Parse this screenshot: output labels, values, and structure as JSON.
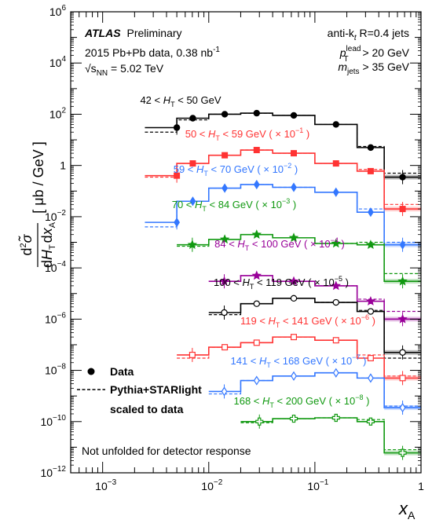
{
  "chart_data": {
    "type": "step",
    "title": "ATLAS Preliminary",
    "annotations": {
      "atlas_bold": "ATLAS",
      "atlas_rest": "Preliminary",
      "dataset": "2015 Pb+Pb data, 0.38 nb",
      "dataset_sup": "-1",
      "energy_pre": "√s",
      "energy_sub": "NN",
      "energy_post": " = 5.02 TeV",
      "jets_line": "anti-k",
      "jets_sub": "t",
      "jets_post": " R=0.4 jets",
      "cut1_p": "p",
      "cut1_sup": "lead",
      "cut1_sub": "T",
      "cut1_rest": " > 20 GeV",
      "cut2_m": "m",
      "cut2_sub": "jets",
      "cut2_rest": " > 35 GeV",
      "footer": "Not unfolded for detector response"
    },
    "xlabel": "x",
    "xlabel_sub": "A",
    "ylabel": "d²σ̃ / dH_T dx_A [ μb / GeV ]",
    "xscale": "log",
    "yscale": "log",
    "xlim": [
      0.0005,
      1
    ],
    "ylim": [
      1e-12,
      1000000.0
    ],
    "x_ticks": [
      {
        "value": 0.001,
        "label": "10",
        "exp": "−3"
      },
      {
        "value": 0.01,
        "label": "10",
        "exp": "−2"
      },
      {
        "value": 0.1,
        "label": "10",
        "exp": "−1"
      },
      {
        "value": 1,
        "label": "1",
        "exp": ""
      }
    ],
    "y_ticks": [
      {
        "value": 1e-12,
        "label": "10",
        "exp": "−12"
      },
      {
        "value": 1e-10,
        "label": "10",
        "exp": "−10"
      },
      {
        "value": 1e-08,
        "label": "10",
        "exp": "−8"
      },
      {
        "value": 1e-06,
        "label": "10",
        "exp": "−6"
      },
      {
        "value": 0.0001,
        "label": "10",
        "exp": "−4"
      },
      {
        "value": 0.01,
        "label": "10",
        "exp": "−2"
      },
      {
        "value": 1,
        "label": "1",
        "exp": ""
      },
      {
        "value": 100,
        "label": "10",
        "exp": "2"
      },
      {
        "value": 10000,
        "label": "10",
        "exp": "4"
      },
      {
        "value": 1000000,
        "label": "10",
        "exp": "6"
      }
    ],
    "legend": {
      "placement": "bottom-left",
      "entries": [
        {
          "marker": "filled-circle",
          "label": "Data"
        },
        {
          "marker": "dashed-line",
          "label": "Pythia+STARlight"
        },
        {
          "marker": "none",
          "label": "scaled to data"
        }
      ]
    },
    "series": [
      {
        "name": "42 < H_T < 50 GeV",
        "label_parts": [
          "42 < ",
          "H",
          "T",
          " < 50 GeV",
          ""
        ],
        "color": "#000000",
        "marker": "filled-circle",
        "edges": [
          0.0025,
          0.005,
          0.01,
          0.02,
          0.04,
          0.1,
          0.25,
          0.45,
          1
        ],
        "data": [
          30,
          70,
          100,
          110,
          90,
          40,
          5,
          0.35
        ],
        "mc": [
          20,
          60,
          100,
          110,
          90,
          40,
          5.5,
          0.5
        ],
        "first_x": 0.005
      },
      {
        "name": "50 < H_T < 59 GeV ( × 10^-1 )",
        "label_parts": [
          "50 < ",
          "H",
          "T",
          " < 59 GeV ( × 10",
          "−1",
          " )"
        ],
        "color": "#ff3333",
        "marker": "filled-square",
        "edges": [
          0.0025,
          0.005,
          0.01,
          0.02,
          0.04,
          0.1,
          0.25,
          0.45,
          1
        ],
        "data": [
          0.4,
          1.2,
          2.5,
          4,
          3,
          1.2,
          0.6,
          0.02
        ],
        "mc": [
          0.35,
          1.2,
          2.5,
          4,
          3,
          1.2,
          0.7,
          0.03
        ],
        "first_x": 0.005
      },
      {
        "name": "59 < H_T < 70 GeV ( × 10^-2 )",
        "label_parts": [
          "59 < ",
          "H",
          "T",
          " < 70 GeV ( × 10",
          "−2",
          " )"
        ],
        "color": "#3377ff",
        "marker": "filled-diamond",
        "edges": [
          0.0025,
          0.005,
          0.01,
          0.02,
          0.04,
          0.1,
          0.25,
          0.45,
          1
        ],
        "data": [
          0.006,
          0.04,
          0.13,
          0.18,
          0.14,
          0.09,
          0.015,
          0.0008
        ],
        "mc": [
          0.004,
          0.04,
          0.13,
          0.18,
          0.14,
          0.09,
          0.02,
          0.001
        ],
        "first_x": 0.005
      },
      {
        "name": "70 < H_T < 84 GeV ( × 10^-3 )",
        "label_parts": [
          "70 < ",
          "H",
          "T",
          " < 84 GeV ( × 10",
          "−3",
          " )"
        ],
        "color": "#119911",
        "marker": "filled-star",
        "edges": [
          0.005,
          0.01,
          0.02,
          0.04,
          0.1,
          0.25,
          0.45,
          1
        ],
        "data": [
          0.0008,
          0.0013,
          0.002,
          0.0015,
          0.0009,
          0.0008,
          3e-05
        ],
        "mc": [
          0.0007,
          0.0013,
          0.002,
          0.0015,
          0.0009,
          0.001,
          6e-05
        ],
        "first_x": 0.007
      },
      {
        "name": "84 < H_T < 100 GeV ( × 10^-4 )",
        "label_parts": [
          "84 < ",
          "H",
          "T",
          " < 100 GeV ( × 10",
          "−4",
          " )"
        ],
        "color": "#990099",
        "marker": "filled-star",
        "edges": [
          0.01,
          0.02,
          0.04,
          0.1,
          0.25,
          0.45,
          1
        ],
        "data": [
          3e-05,
          5e-05,
          3e-05,
          2e-05,
          5e-06,
          1e-06
        ],
        "mc": [
          3e-05,
          5e-05,
          3e-05,
          2e-05,
          6e-06,
          2e-06
        ],
        "first_x": 0.014
      },
      {
        "name": "100 < H_T < 119 GeV ( × 10^-5 )",
        "label_parts": [
          "100 < ",
          "H",
          "T",
          " < 119 GeV ( × 10",
          "−5",
          " )"
        ],
        "color": "#000000",
        "marker": "open-circle",
        "edges": [
          0.01,
          0.02,
          0.04,
          0.1,
          0.25,
          0.45,
          1
        ],
        "data": [
          1.8e-06,
          4e-06,
          6.5e-06,
          4.5e-06,
          2e-06,
          5e-08
        ],
        "mc": [
          1.5e-06,
          4e-06,
          6.5e-06,
          4.5e-06,
          2.2e-06,
          3e-08
        ],
        "first_x": 0.014
      },
      {
        "name": "119 < H_T < 141 GeV ( × 10^-6 )",
        "label_parts": [
          "119 < ",
          "H",
          "T",
          " < 141 GeV ( × 10",
          "−6",
          " )"
        ],
        "color": "#ff3333",
        "marker": "open-square",
        "edges": [
          0.005,
          0.01,
          0.02,
          0.04,
          0.1,
          0.25,
          0.45,
          1
        ],
        "data": [
          4e-08,
          8e-08,
          1.2e-07,
          2e-07,
          1.5e-07,
          3e-08,
          5e-09
        ],
        "mc": [
          3e-08,
          8e-08,
          1.2e-07,
          2e-07,
          1.5e-07,
          4e-08,
          6e-09
        ],
        "first_x": 0.007
      },
      {
        "name": "141 < H_T < 168 GeV ( × 10^-7 )",
        "label_parts": [
          "141 < ",
          "H",
          "T",
          " < 168 GeV ( × 10",
          "−7",
          " )"
        ],
        "color": "#3377ff",
        "marker": "open-diamond",
        "edges": [
          0.01,
          0.02,
          0.04,
          0.1,
          0.25,
          0.45,
          1
        ],
        "data": [
          1.5e-09,
          4e-09,
          6e-09,
          8e-09,
          5e-09,
          3.5e-10
        ],
        "mc": [
          1.2e-09,
          4e-09,
          6e-09,
          8e-09,
          5e-09,
          4e-10
        ],
        "first_x": 0.014
      },
      {
        "name": "168 < H_T < 200 GeV ( × 10^-8 )",
        "label_parts": [
          "168 < ",
          "H",
          "T",
          " < 200 GeV ( × 10",
          "−8",
          " )"
        ],
        "color": "#119911",
        "marker": "open-cross",
        "edges": [
          0.02,
          0.04,
          0.1,
          0.25,
          0.45,
          1
        ],
        "data": [
          1e-10,
          1.3e-10,
          1.4e-10,
          1e-10,
          6e-12
        ],
        "mc": [
          9e-11,
          1.3e-10,
          1.4e-10,
          1.2e-10,
          8e-12
        ],
        "first_x": 0.03
      }
    ]
  }
}
